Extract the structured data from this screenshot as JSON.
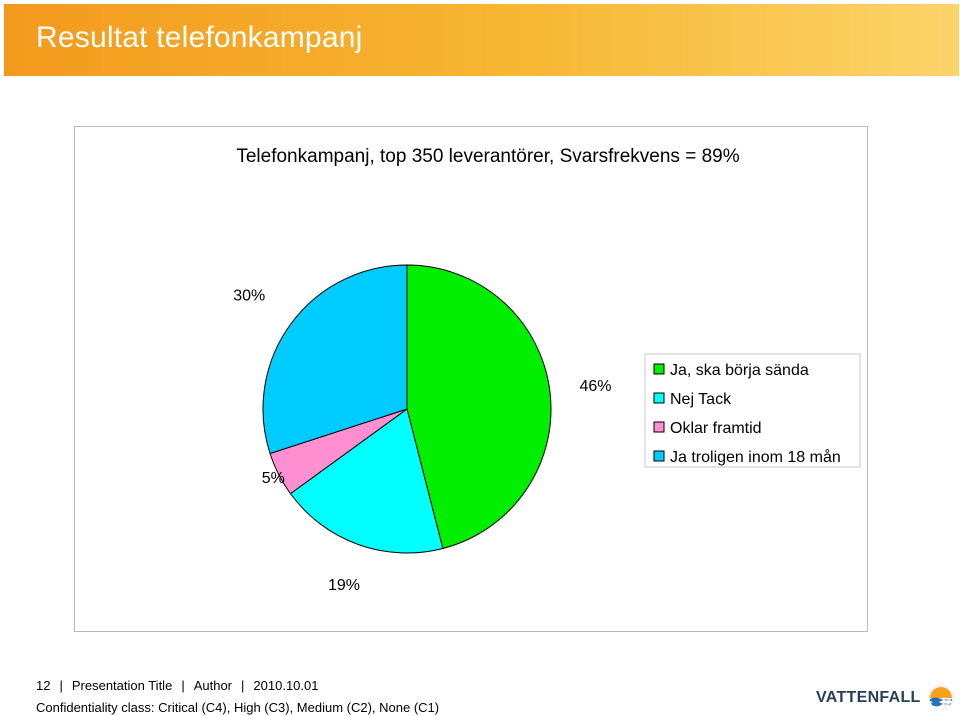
{
  "header": {
    "title": "Resultat telefonkampanj"
  },
  "chart_data": {
    "type": "pie",
    "title": "Telefonkampanj, top 350 leverantörer, Svarsfrekvens = 89%",
    "slices": [
      {
        "name": "Ja, ska börja sända",
        "value": 46,
        "label": "46%",
        "color": "#00ee00"
      },
      {
        "name": "Nej Tack",
        "value": 19,
        "label": "19%",
        "color": "#00ffff"
      },
      {
        "name": "Oklar framtid",
        "value": 5,
        "label": "5%",
        "color": "#ff8fd0"
      },
      {
        "name": "Ja troligen inom 18 mån",
        "value": 30,
        "label": "30%",
        "color": "#00ccff"
      }
    ],
    "legend_position": "right"
  },
  "footer": {
    "page_number": "12",
    "presentation_title": "Presentation Title",
    "author": "Author",
    "date": "2010.10.01",
    "confidentiality": "Confidentiality class: Critical (C4), High (C3), Medium (C2), None (C1)"
  },
  "logo": {
    "text": "VATTENFALL",
    "icon": "vattenfall-logo-icon",
    "colors": [
      "#f6a21d",
      "#2a6fb5"
    ]
  }
}
